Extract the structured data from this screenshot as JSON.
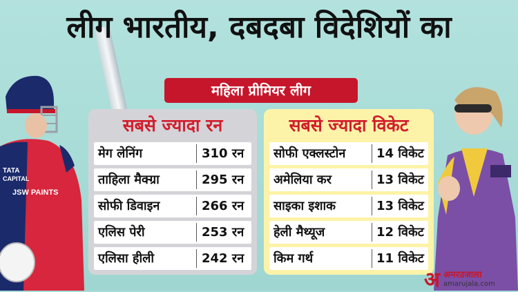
{
  "headline": "लीग भारतीय, दबदबा विदेशियों का",
  "subtitle": "महिला प्रीमियर लीग",
  "most_runs": {
    "title": "सबसे ज्यादा रन",
    "rows": [
      {
        "name": "मेग लेनिंग",
        "value": "310 रन"
      },
      {
        "name": "ताहिला मैक्ग्रा",
        "value": "295 रन"
      },
      {
        "name": "सोफी डिवाइन",
        "value": "266 रन"
      },
      {
        "name": "एलिस पेरी",
        "value": "253 रन"
      },
      {
        "name": "एलिसा हीली",
        "value": "242 रन"
      }
    ]
  },
  "most_wickets": {
    "title": "सबसे ज्यादा विकेट",
    "rows": [
      {
        "name": "सोफी एक्लस्टोन",
        "value": "14 विकेट"
      },
      {
        "name": "अमेलिया कर",
        "value": "13 विकेट"
      },
      {
        "name": "साइका इशाक",
        "value": "13 विकेट"
      },
      {
        "name": "हेली मैथ्यूज",
        "value": "12 विकेट"
      },
      {
        "name": "किम गर्थ",
        "value": "11 विकेट"
      }
    ]
  },
  "jersey_left": {
    "line1": "TATA",
    "line2": "CAPITAL",
    "line3": "JSW PAINTS"
  },
  "logo": {
    "mark": "अ",
    "name": "अमरउजाला",
    "url": "amarujala.com"
  },
  "colors": {
    "accent_red": "#c6162b",
    "background": "#a9dcd8",
    "runs_panel": "#d4d4d8",
    "wickets_panel": "#fdf3a8"
  }
}
